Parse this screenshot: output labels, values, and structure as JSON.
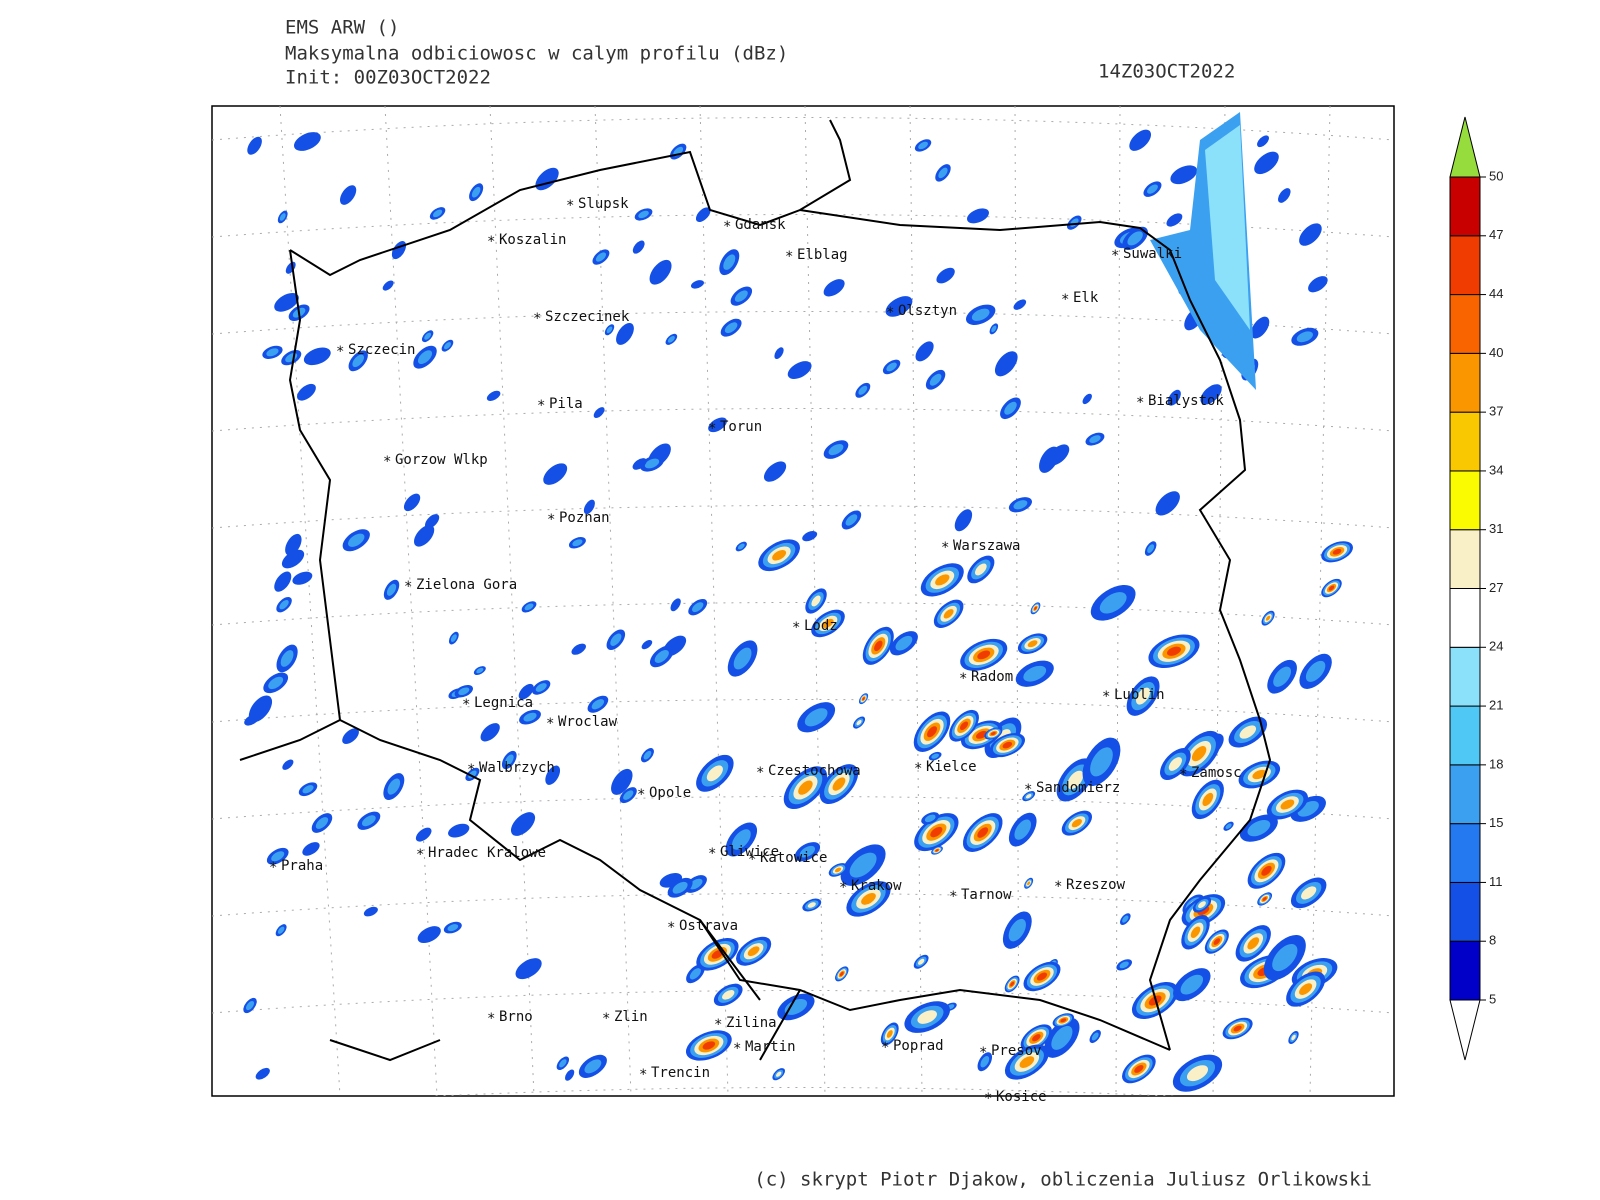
{
  "header": {
    "model": "EMS ARW ()",
    "field": "Maksymalna odbiciowosc w calym profilu (dBz)",
    "init": "Init: 00Z03OCT2022",
    "valid": "14Z03OCT2022"
  },
  "map": {
    "cities": [
      "Slupsk",
      "Koszalin",
      "Gdansk",
      "Elblag",
      "Suwalki",
      "Elk",
      "Olsztyn",
      "Szczecinek",
      "Szczecin",
      "Bialystok",
      "Pila",
      "Torun",
      "Gorzow Wlkp",
      "Poznan",
      "Warszawa",
      "Zielona Gora",
      "Lodz",
      "Radom",
      "Lublin",
      "Legnica",
      "Wroclaw",
      "Czestochowa",
      "Kielce",
      "Walbrzych",
      "Zamosc",
      "Opole",
      "Sandomierz",
      "Hradec Kralowe",
      "Gliwice",
      "Katowice",
      "Praha",
      "Krakow",
      "Rzeszow",
      "Tarnow",
      "Ostrava",
      "Brno",
      "Zlin",
      "Zilina",
      "Martin",
      "Poprad",
      "Presov",
      "Trencin",
      "Kosice"
    ]
  },
  "colorbar": {
    "levels": [
      5,
      8,
      11,
      15,
      18,
      21,
      24,
      27,
      31,
      34,
      37,
      40,
      44,
      47,
      50
    ],
    "colors": [
      "#0000c8",
      "#1450e6",
      "#2478f0",
      "#3ca0f0",
      "#50c8f5",
      "#8ce1fa",
      "#ffffff",
      "#faf0c8",
      "#fafa00",
      "#fac800",
      "#fa9600",
      "#fa6400",
      "#f03c00",
      "#c80000"
    ],
    "under_color": "#ffffff",
    "over_color": "#96dc3c"
  },
  "footer": {
    "credit": "(c) skrypt Piotr Djakow, obliczenia Juliusz Orlikowski"
  }
}
